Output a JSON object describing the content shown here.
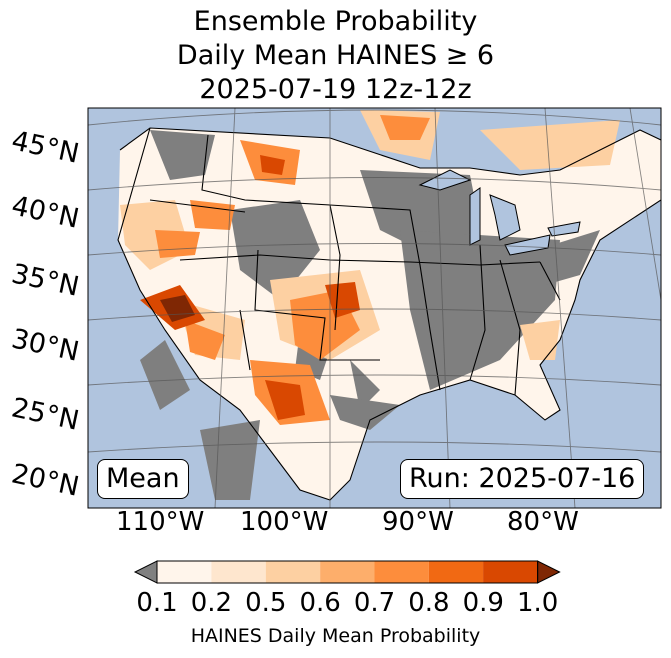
{
  "title": {
    "line1": "Ensemble Probability",
    "line2": "Daily Mean HAINES ≥ 6",
    "line3": "2025-07-19 12z-12z"
  },
  "lat_labels": [
    "45°N",
    "40°N",
    "35°N",
    "30°N",
    "25°N",
    "20°N"
  ],
  "lon_labels": [
    "110°W",
    "100°W",
    "90°W",
    "80°W"
  ],
  "mean_label": "Mean",
  "run_label": "Run: 2025-07-16",
  "colorbar": {
    "ticks": [
      "0.1",
      "0.2",
      "0.5",
      "0.6",
      "0.7",
      "0.8",
      "0.9",
      "1.0"
    ],
    "colors": [
      "#fff5eb",
      "#fee6ce",
      "#fdd0a2",
      "#fdae6b",
      "#fd8d3c",
      "#f16913",
      "#d94801",
      "#7f2704"
    ],
    "under_color": "#808080",
    "label": "HAINES Daily Mean Probability"
  },
  "colors": {
    "ocean": "#b0c4de",
    "no_data": "#7f7f7f",
    "grid": "#555555"
  }
}
